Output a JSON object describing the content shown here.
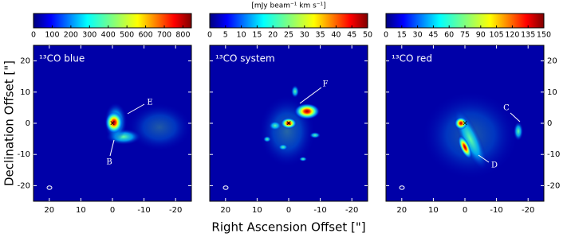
{
  "figure": {
    "xlabel": "Right Ascension Offset [\"]",
    "ylabel": "Declination Offset [\"]",
    "colorbar_label": "[mJy beam⁻¹ km s⁻¹]"
  },
  "chart_data": [
    {
      "type": "image",
      "title": "¹³CO blue",
      "clim": [
        0,
        845
      ],
      "cticks": [
        0,
        100,
        200,
        300,
        400,
        500,
        600,
        700,
        800
      ],
      "xlim": [
        25,
        -25
      ],
      "xticks": [
        20,
        10,
        0,
        -10,
        -20
      ],
      "ylim": [
        -25,
        25
      ],
      "yticks": [
        20,
        10,
        0,
        -10,
        -20
      ],
      "annotations": [
        "E",
        "B"
      ]
    },
    {
      "type": "image",
      "title": "¹³CO system",
      "clim": [
        0,
        50
      ],
      "cticks": [
        0,
        5,
        10,
        15,
        20,
        25,
        30,
        35,
        40,
        45,
        50
      ],
      "xlim": [
        25,
        -25
      ],
      "xticks": [
        20,
        10,
        0,
        -10,
        -20
      ],
      "ylim": [
        -25,
        25
      ],
      "yticks": [
        20,
        10,
        0,
        -10,
        -20
      ],
      "annotations": [
        "F"
      ]
    },
    {
      "type": "image",
      "title": "¹³CO red",
      "clim": [
        0,
        150
      ],
      "cticks": [
        0,
        15,
        30,
        45,
        60,
        75,
        90,
        105,
        120,
        135,
        150
      ],
      "xlim": [
        25,
        -25
      ],
      "xticks": [
        20,
        10,
        0,
        -10,
        -20
      ],
      "ylim": [
        -25,
        25
      ],
      "yticks": [
        20,
        10,
        0,
        -10,
        -20
      ],
      "annotations": [
        "C",
        "D"
      ]
    }
  ]
}
